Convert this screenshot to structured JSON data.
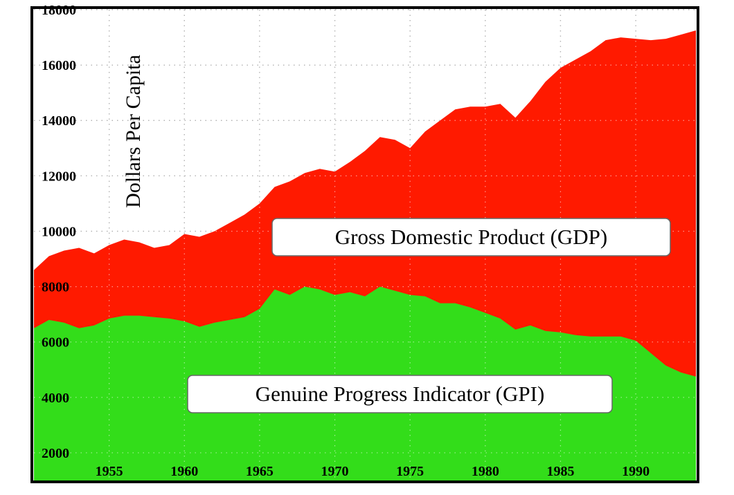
{
  "chart_data": {
    "type": "area",
    "title": "",
    "xlabel": "",
    "ylabel": "Dollars Per Capita",
    "xlim": [
      1950,
      1994
    ],
    "ylim": [
      1000,
      18000
    ],
    "y_ticks": [
      "2000",
      "4000",
      "6000",
      "8000",
      "10000",
      "12000",
      "14000",
      "16000",
      "18000"
    ],
    "x_ticks": [
      "1955",
      "1960",
      "1965",
      "1970",
      "1975",
      "1980",
      "1985",
      "1990"
    ],
    "grid": true,
    "colors": {
      "GDP": "#ff1a00",
      "GPI": "#33dd1a"
    },
    "series": [
      {
        "name": "Gross Domestic Product (GDP)",
        "x": [
          1950,
          1951,
          1952,
          1953,
          1954,
          1955,
          1956,
          1957,
          1958,
          1959,
          1960,
          1961,
          1962,
          1963,
          1964,
          1965,
          1966,
          1967,
          1968,
          1969,
          1970,
          1971,
          1972,
          1973,
          1974,
          1975,
          1976,
          1977,
          1978,
          1979,
          1980,
          1981,
          1982,
          1983,
          1984,
          1985,
          1986,
          1987,
          1988,
          1989,
          1990,
          1991,
          1992,
          1993,
          1994
        ],
        "values": [
          8600,
          9100,
          9300,
          9400,
          9200,
          9500,
          9700,
          9600,
          9400,
          9500,
          9900,
          9800,
          10000,
          10300,
          10600,
          11000,
          11600,
          11800,
          12100,
          12250,
          12150,
          12500,
          12900,
          13400,
          13300,
          13000,
          13600,
          14000,
          14400,
          14500,
          14500,
          14600,
          14100,
          14700,
          15400,
          15900,
          16200,
          16500,
          16900,
          17000,
          16950,
          16900,
          16950,
          17100,
          17250
        ]
      },
      {
        "name": "Genuine Progress Indicator (GPI)",
        "x": [
          1950,
          1951,
          1952,
          1953,
          1954,
          1955,
          1956,
          1957,
          1958,
          1959,
          1960,
          1961,
          1962,
          1963,
          1964,
          1965,
          1966,
          1967,
          1968,
          1969,
          1970,
          1971,
          1972,
          1973,
          1974,
          1975,
          1976,
          1977,
          1978,
          1979,
          1980,
          1981,
          1982,
          1983,
          1984,
          1985,
          1986,
          1987,
          1988,
          1989,
          1990,
          1991,
          1992,
          1993,
          1994
        ],
        "values": [
          6500,
          6800,
          6700,
          6500,
          6600,
          6850,
          6950,
          6950,
          6900,
          6850,
          6750,
          6550,
          6700,
          6800,
          6900,
          7200,
          7900,
          7700,
          8000,
          7900,
          7700,
          7800,
          7650,
          8000,
          7850,
          7700,
          7650,
          7400,
          7400,
          7250,
          7050,
          6850,
          6450,
          6600,
          6400,
          6350,
          6250,
          6200,
          6200,
          6200,
          6050,
          5600,
          5150,
          4900,
          4750
        ]
      }
    ],
    "annotations": [
      {
        "text": "Gross Domestic Product (GDP)",
        "series": "GDP"
      },
      {
        "text": "Genuine Progress Indicator (GPI)",
        "series": "GPI"
      }
    ]
  }
}
